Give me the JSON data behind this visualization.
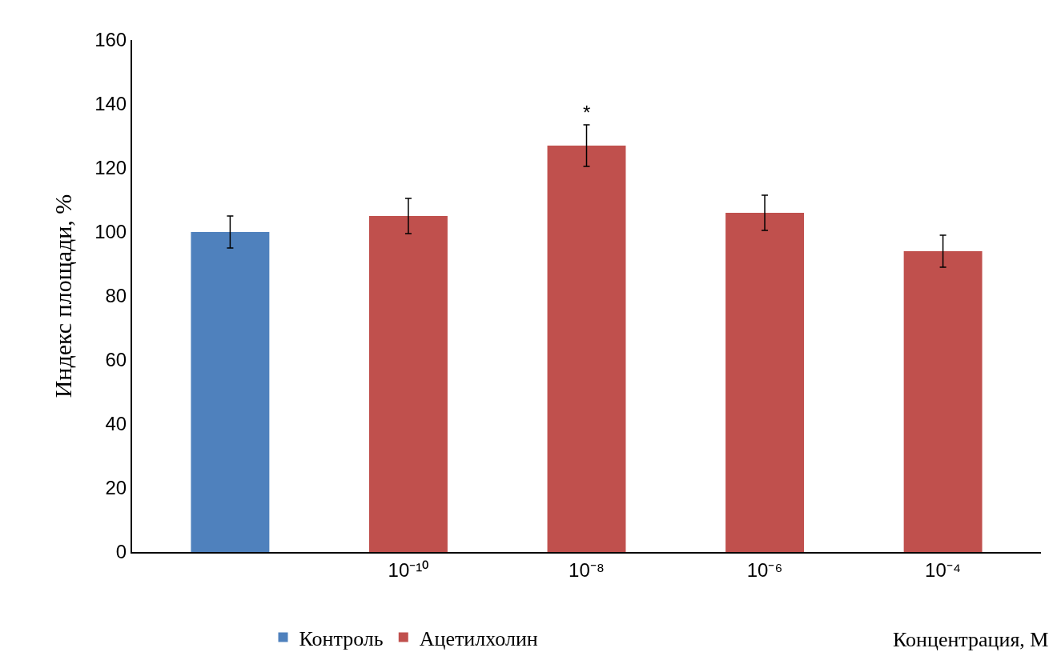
{
  "chart_data": {
    "type": "bar",
    "categories": [
      null,
      "10⁻¹⁰",
      "10⁻⁸",
      "10⁻⁶",
      "10⁻⁴"
    ],
    "series": [
      {
        "name": "Контроль",
        "color": "#4f81bd",
        "values": [
          100,
          null,
          null,
          null,
          null
        ],
        "errors": [
          5,
          null,
          null,
          null,
          null
        ]
      },
      {
        "name": "Ацетилхолин",
        "color": "#c0504d",
        "values": [
          null,
          105,
          127,
          106,
          94
        ],
        "errors": [
          null,
          5.5,
          6.5,
          5.5,
          5
        ]
      }
    ],
    "xlabel": "Концентрация, М",
    "ylabel": "Индекс площади, %",
    "ylim": [
      0,
      160
    ],
    "yticks": [
      0,
      20,
      40,
      60,
      80,
      100,
      120,
      140,
      160
    ],
    "annotations": [
      {
        "text": "*",
        "x": "10⁻⁸",
        "y": 127
      }
    ],
    "grid": false,
    "legend": "bottom"
  }
}
